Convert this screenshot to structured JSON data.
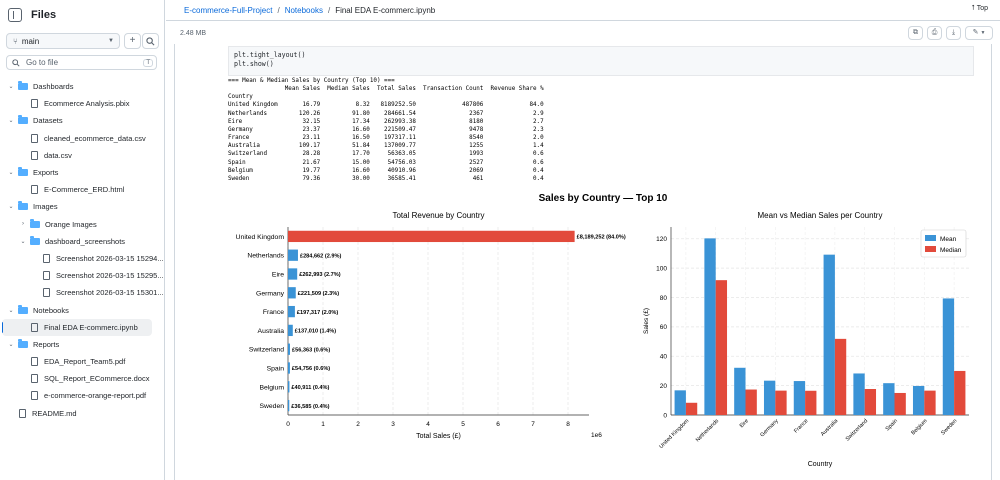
{
  "sidebar": {
    "title": "Files",
    "branch": "main",
    "add_label": "+",
    "search_placeholder": "Go to file",
    "search_shortcut": "T",
    "tree": [
      {
        "type": "folder",
        "name": "Dashboards",
        "indent": 0
      },
      {
        "type": "file",
        "name": "Ecommerce Analysis.pbix",
        "indent": 1
      },
      {
        "type": "folder",
        "name": "Datasets",
        "indent": 0
      },
      {
        "type": "file",
        "name": "cleaned_ecommerce_data.csv",
        "indent": 1
      },
      {
        "type": "file",
        "name": "data.csv",
        "indent": 1
      },
      {
        "type": "folder",
        "name": "Exports",
        "indent": 0
      },
      {
        "type": "file",
        "name": "E-Commerce_ERD.html",
        "indent": 1
      },
      {
        "type": "folder",
        "name": "Images",
        "indent": 0
      },
      {
        "type": "folder",
        "name": "Orange Images",
        "indent": 1,
        "collapsed": true
      },
      {
        "type": "folder",
        "name": "dashboard_screenshots",
        "indent": 1
      },
      {
        "type": "file",
        "name": "Screenshot 2026-03-15 15294...",
        "indent": 2
      },
      {
        "type": "file",
        "name": "Screenshot 2026-03-15 15295...",
        "indent": 2
      },
      {
        "type": "file",
        "name": "Screenshot 2026-03-15 15301...",
        "indent": 2
      },
      {
        "type": "folder",
        "name": "Notebooks",
        "indent": 0
      },
      {
        "type": "file",
        "name": "Final EDA E-commerc.ipynb",
        "indent": 1,
        "selected": true
      },
      {
        "type": "folder",
        "name": "Reports",
        "indent": 0
      },
      {
        "type": "file",
        "name": "EDA_Report_Team5.pdf",
        "indent": 1
      },
      {
        "type": "file",
        "name": "SQL_Report_ECommerce.docx",
        "indent": 1
      },
      {
        "type": "file",
        "name": "e-commerce-orange-report.pdf",
        "indent": 1
      },
      {
        "type": "file",
        "name": "README.md",
        "indent": 0
      }
    ]
  },
  "breadcrumb": {
    "repo": "E-commerce-Full-Project",
    "folder": "Notebooks",
    "file": "Final EDA E-commerc.ipynb",
    "sep": "/"
  },
  "top_label": "Top",
  "file_size": "2.48 MB",
  "code_lines": [
    "plt.tight_layout()",
    "plt.show()"
  ],
  "output": {
    "header": "=== Mean & Median Sales by Country (Top 10) ===",
    "columns": "                Mean Sales  Median Sales  Total Sales  Transaction Count  Revenue Share %",
    "index_label": "Country",
    "rows": [
      "United Kingdom       16.79          8.32   8189252.50             487806             84.0",
      "Netherlands         120.26         91.80    284661.54               2367              2.9",
      "Eire                 32.15         17.34    262993.38               8180              2.7",
      "Germany              23.37         16.60    221509.47               9478              2.3",
      "France               23.11         16.50    197317.11               8540              2.0",
      "Australia           109.17         51.84    137009.77               1255              1.4",
      "Switzerland          28.28         17.70     56363.05               1993              0.6",
      "Spain                21.67         15.00     54756.03               2527              0.6",
      "Belgium              19.77         16.60     40910.96               2069              0.4",
      "Sweden               79.36         30.00     36585.41                461              0.4"
    ]
  },
  "figure_title": "Sales by Country — Top 10",
  "colors": {
    "bar_blue": "#3a93d6",
    "bar_red": "#e24a3b",
    "link": "#0969da"
  },
  "chart_data": [
    {
      "type": "bar",
      "orientation": "horizontal",
      "title": "Total Revenue by Country",
      "xlabel": "Total Sales (£)",
      "ylabel": "",
      "xlim": [
        0,
        8600000
      ],
      "x_tick_values": [
        0,
        1000000,
        2000000,
        3000000,
        4000000,
        5000000,
        6000000,
        7000000,
        8000000
      ],
      "x_tick_labels": [
        "0",
        "1",
        "2",
        "3",
        "4",
        "5",
        "6",
        "7",
        "8"
      ],
      "offset_label": "1e6",
      "categories": [
        "United Kingdom",
        "Netherlands",
        "Eire",
        "Germany",
        "France",
        "Australia",
        "Switzerland",
        "Spain",
        "Belgium",
        "Sweden"
      ],
      "values": [
        8189252,
        284662,
        262993,
        221509,
        197317,
        137010,
        56363,
        54756,
        40911,
        36585
      ],
      "labels": [
        "£8,189,252 (84.0%)",
        "£284,662 (2.9%)",
        "£262,993 (2.7%)",
        "£221,509 (2.3%)",
        "£197,317 (2.0%)",
        "£137,010 (1.4%)",
        "£56,363 (0.6%)",
        "£54,756 (0.6%)",
        "£40,911 (0.4%)",
        "£36,585 (0.4%)"
      ],
      "highlight_color": "#e24a3b",
      "color": "#3a93d6",
      "grid": true
    },
    {
      "type": "bar",
      "title": "Mean vs Median Sales per Country",
      "xlabel": "Country",
      "ylabel": "Sales (£)",
      "ylim": [
        0,
        128
      ],
      "y_ticks": [
        0,
        20,
        40,
        60,
        80,
        100,
        120
      ],
      "categories": [
        "United Kingdom",
        "Netherlands",
        "Eire",
        "Germany",
        "France",
        "Australia",
        "Switzerland",
        "Spain",
        "Belgium",
        "Sweden"
      ],
      "series": [
        {
          "name": "Mean",
          "color": "#3a93d6",
          "values": [
            16.79,
            120.26,
            32.15,
            23.37,
            23.11,
            109.17,
            28.28,
            21.67,
            19.77,
            79.36
          ]
        },
        {
          "name": "Median",
          "color": "#e24a3b",
          "values": [
            8.32,
            91.8,
            17.34,
            16.6,
            16.5,
            51.84,
            17.7,
            15.0,
            16.6,
            30.0
          ]
        }
      ],
      "legend": "top-right",
      "grid": true
    }
  ]
}
